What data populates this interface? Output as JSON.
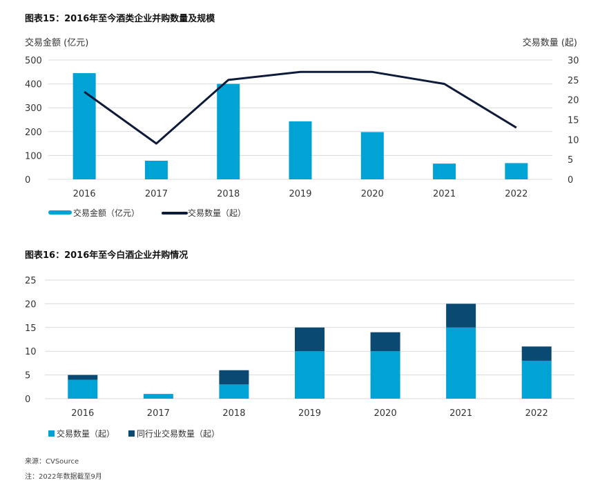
{
  "titles": {
    "chart15": "图表15：2016年至今酒类企业并购数量及规模",
    "chart16": "图表16：2016年至今白酒企业并购情况"
  },
  "colors": {
    "bar_primary": "#00A3D4",
    "bar_secondary": "#0A4A72",
    "line": "#0E1A3A",
    "grid": "#D9D9D9"
  },
  "chart_data": [
    {
      "type": "bar+line",
      "title": "图表15：2016年至今酒类企业并购数量及规模",
      "categories": [
        "2016",
        "2017",
        "2018",
        "2019",
        "2020",
        "2021",
        "2022"
      ],
      "ylabel_left": "交易金额 (亿元)",
      "ylabel_right": "交易数量 (起)",
      "ylim_left": [
        0,
        500
      ],
      "yticks_left": [
        0,
        100,
        200,
        300,
        400,
        500
      ],
      "ylim_right": [
        0,
        30
      ],
      "yticks_right": [
        0,
        5,
        10,
        15,
        20,
        25,
        30
      ],
      "series": [
        {
          "name": "交易金额（亿元）",
          "type": "bar",
          "axis": "left",
          "values": [
            445,
            78,
            400,
            243,
            198,
            66,
            68
          ]
        },
        {
          "name": "交易数量（起）",
          "type": "line",
          "axis": "right",
          "values": [
            22,
            9,
            25,
            27,
            27,
            24,
            13
          ]
        }
      ],
      "legend_position": "bottom-left",
      "grid": true
    },
    {
      "type": "stacked-bar",
      "title": "图表16：2016年至今白酒企业并购情况",
      "categories": [
        "2016",
        "2017",
        "2018",
        "2019",
        "2020",
        "2021",
        "2022"
      ],
      "ylim": [
        0,
        25
      ],
      "yticks": [
        0,
        5,
        10,
        15,
        20,
        25
      ],
      "series": [
        {
          "name": "交易数量（起）",
          "values": [
            4,
            1,
            3,
            10,
            10,
            15,
            8
          ]
        },
        {
          "name": "同行业交易数量（起）",
          "values": [
            1,
            0,
            3,
            5,
            4,
            5,
            3
          ]
        }
      ],
      "legend_position": "bottom-left",
      "grid": true
    }
  ],
  "notes": {
    "source": "来源：CVSource",
    "footnote": "注：2022年数据截至9月"
  }
}
